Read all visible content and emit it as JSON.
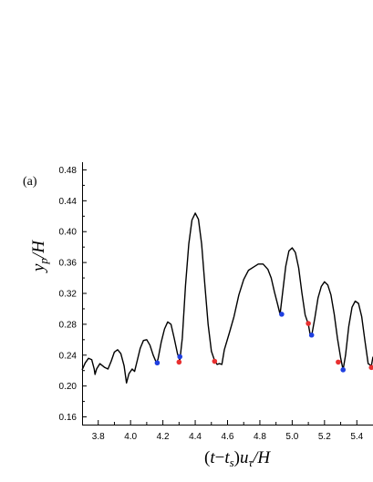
{
  "chart_data": {
    "type": "line",
    "panel_label": "(a)",
    "xlabel": "(t−t_s)u_τ/H",
    "ylabel": "y_p/H",
    "xlim": [
      3.7,
      5.5
    ],
    "ylim": [
      0.15,
      0.49
    ],
    "x_ticks": [
      3.8,
      4.0,
      4.2,
      4.4,
      4.6,
      4.8,
      5.0,
      5.2,
      5.4
    ],
    "x_tick_labels": [
      "3.8",
      "4.0",
      "4.2",
      "4.4",
      "4.6",
      "4.8",
      "5.0",
      "5.2",
      "5.4"
    ],
    "y_ticks": [
      0.16,
      0.2,
      0.24,
      0.28,
      0.32,
      0.36,
      0.4,
      0.44,
      0.48
    ],
    "y_tick_labels": [
      "0.16",
      "0.20",
      "0.24",
      "0.28",
      "0.32",
      "0.36",
      "0.40",
      "0.44",
      "0.48"
    ],
    "grid": false,
    "colors": {
      "line": "#000000",
      "blue_marker": "#1f3fe0",
      "red_marker": "#e83030"
    },
    "series": [
      {
        "style": "line",
        "x": [
          3.7,
          3.72,
          3.74,
          3.76,
          3.775,
          3.78,
          3.79,
          3.81,
          3.84,
          3.86,
          3.88,
          3.9,
          3.92,
          3.94,
          3.96,
          3.975,
          3.99,
          4.01,
          4.025,
          4.04,
          4.06,
          4.08,
          4.1,
          4.12,
          4.14,
          4.16,
          4.17,
          4.19,
          4.21,
          4.23,
          4.25,
          4.27,
          4.29,
          4.305,
          4.32,
          4.34,
          4.36,
          4.38,
          4.4,
          4.42,
          4.44,
          4.46,
          4.48,
          4.5,
          4.52,
          4.535,
          4.55,
          4.565,
          4.58,
          4.61,
          4.64,
          4.67,
          4.7,
          4.73,
          4.76,
          4.79,
          4.82,
          4.85,
          4.87,
          4.89,
          4.91,
          4.925,
          4.94,
          4.96,
          4.98,
          5.0,
          5.02,
          5.04,
          5.06,
          5.08,
          5.1,
          5.11,
          5.12,
          5.14,
          5.16,
          5.18,
          5.2,
          5.22,
          5.24,
          5.26,
          5.28,
          5.3,
          5.315,
          5.33,
          5.35,
          5.37,
          5.39,
          5.41,
          5.43,
          5.45,
          5.47,
          5.49,
          5.5
        ],
        "y": [
          0.221,
          0.23,
          0.236,
          0.234,
          0.222,
          0.215,
          0.222,
          0.229,
          0.224,
          0.222,
          0.232,
          0.244,
          0.247,
          0.242,
          0.226,
          0.204,
          0.216,
          0.222,
          0.219,
          0.232,
          0.249,
          0.259,
          0.26,
          0.253,
          0.24,
          0.23,
          0.235,
          0.257,
          0.274,
          0.283,
          0.28,
          0.262,
          0.242,
          0.233,
          0.262,
          0.33,
          0.384,
          0.415,
          0.424,
          0.416,
          0.384,
          0.33,
          0.28,
          0.245,
          0.233,
          0.228,
          0.229,
          0.228,
          0.247,
          0.268,
          0.29,
          0.318,
          0.338,
          0.35,
          0.354,
          0.358,
          0.358,
          0.351,
          0.34,
          0.322,
          0.306,
          0.293,
          0.32,
          0.355,
          0.375,
          0.379,
          0.373,
          0.353,
          0.321,
          0.292,
          0.28,
          0.268,
          0.265,
          0.288,
          0.314,
          0.329,
          0.335,
          0.331,
          0.318,
          0.293,
          0.262,
          0.236,
          0.221,
          0.24,
          0.277,
          0.302,
          0.31,
          0.307,
          0.29,
          0.259,
          0.229,
          0.226,
          0.238
        ]
      },
      {
        "style": "marker",
        "color": "blue",
        "x": [
          4.165,
          4.305,
          4.935,
          5.12,
          5.315
        ],
        "y": [
          0.23,
          0.238,
          0.293,
          0.266,
          0.221
        ]
      },
      {
        "style": "marker",
        "color": "red",
        "x": [
          4.3,
          4.52,
          5.1,
          5.285,
          5.49
        ],
        "y": [
          0.231,
          0.232,
          0.281,
          0.231,
          0.224
        ]
      }
    ]
  }
}
